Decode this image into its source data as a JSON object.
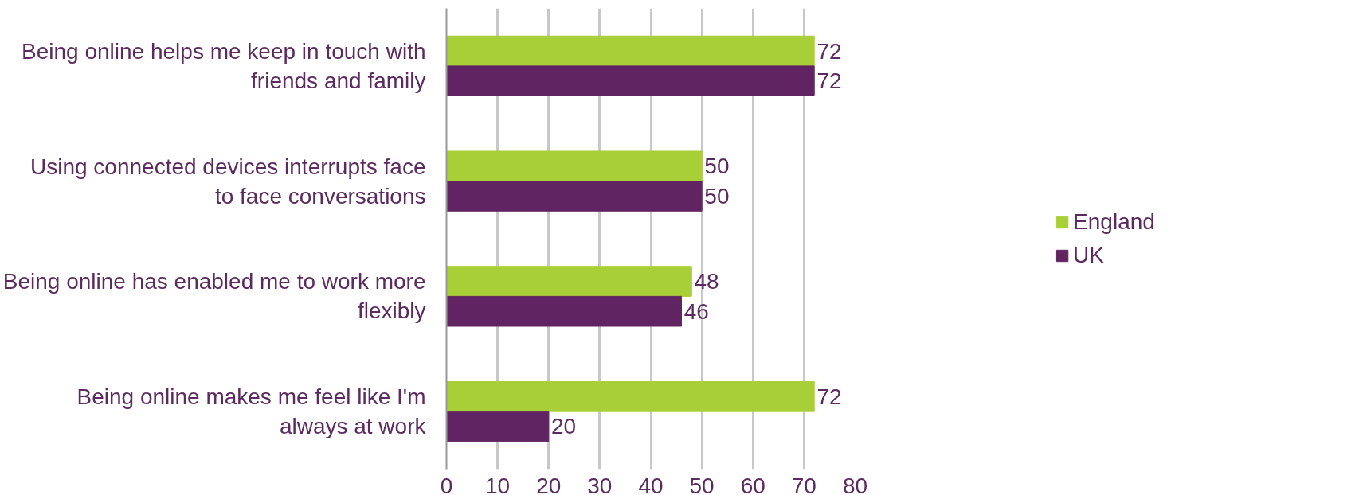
{
  "chart_data": {
    "type": "bar",
    "orientation": "horizontal",
    "categories": [
      "Being online helps me keep in touch with friends and family",
      "Using connected devices interrupts face to face conversations",
      "Being online has enabled me to work more flexibly",
      "Being online makes me feel like I'm always at work"
    ],
    "series": [
      {
        "name": "England",
        "color": "#a9cf38",
        "values": [
          72,
          50,
          48,
          72
        ]
      },
      {
        "name": "UK",
        "color": "#612462",
        "values": [
          72,
          50,
          46,
          20
        ]
      }
    ],
    "xlim": [
      0,
      80
    ],
    "xticks": [
      0,
      10,
      20,
      30,
      40,
      50,
      60,
      70,
      80
    ],
    "grid": "x",
    "legend": "right",
    "data_labels": true
  }
}
